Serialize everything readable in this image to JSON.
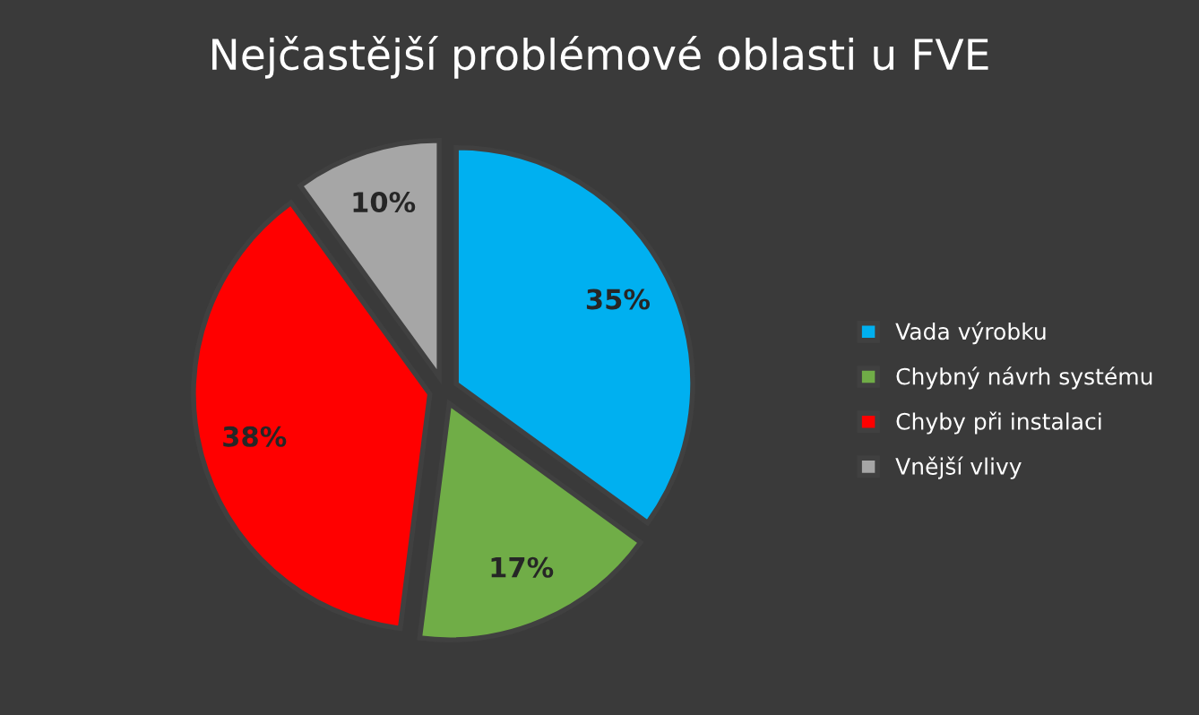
{
  "chart_data": {
    "type": "pie",
    "title": "Nejčastější problémové oblasti u FVE",
    "categories": [
      "Vada výrobku",
      "Chybný návrh systému",
      "Chyby při instalaci",
      "Vnější vlivy"
    ],
    "values": [
      35,
      17,
      38,
      10
    ],
    "colors": [
      "#00b0f0",
      "#70ad47",
      "#ff0000",
      "#a6a6a6"
    ],
    "value_labels": [
      "35%",
      "17%",
      "38%",
      "10%"
    ],
    "legend": "right"
  }
}
